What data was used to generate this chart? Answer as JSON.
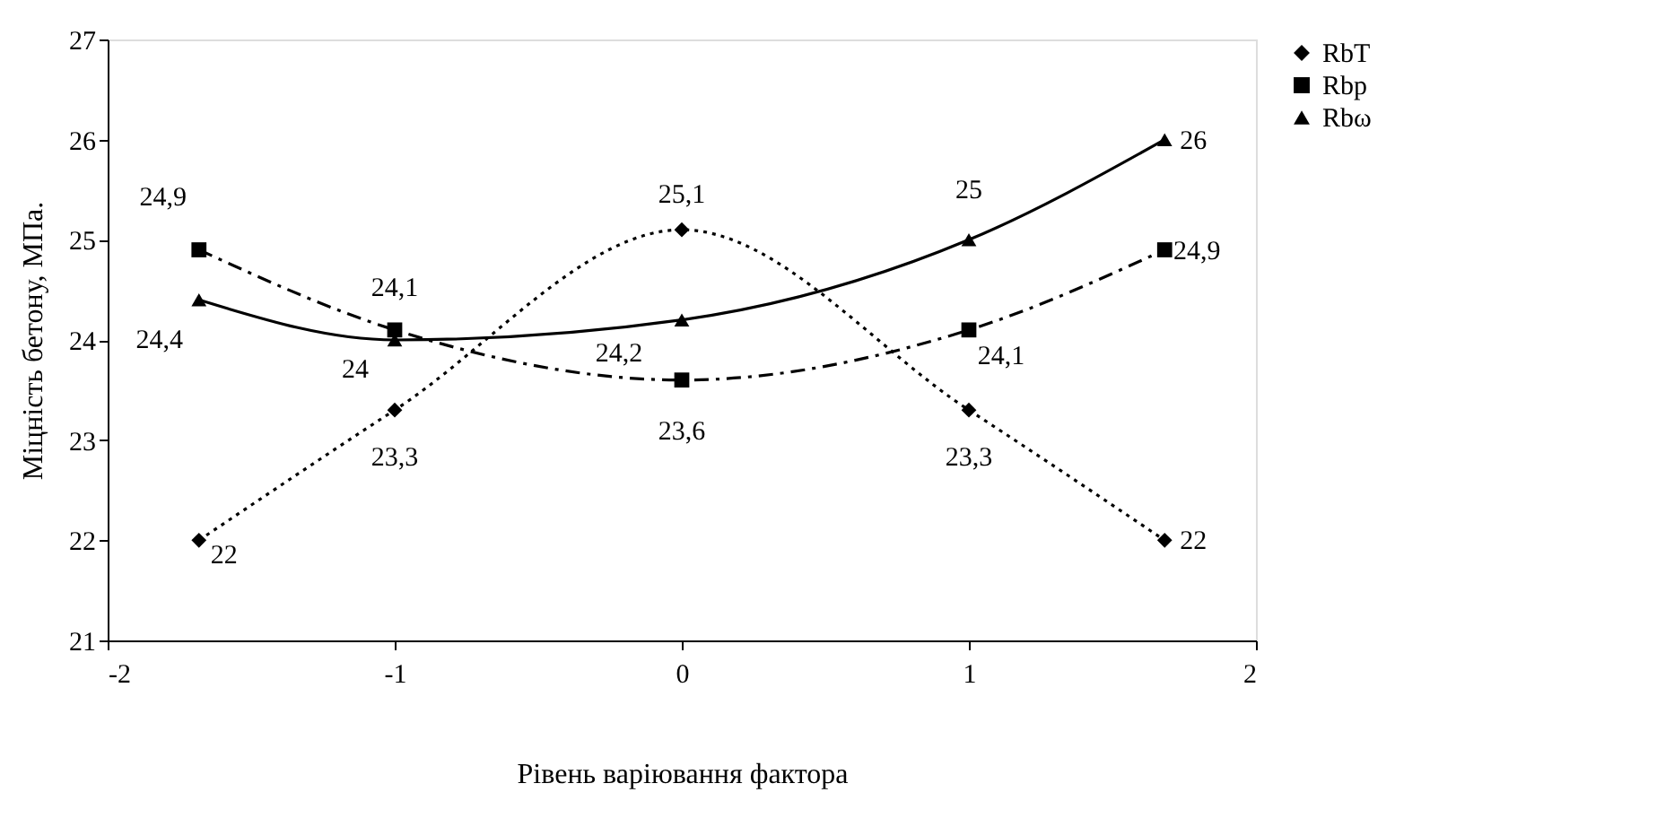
{
  "chart_data": {
    "type": "line",
    "xlabel": "Рівень варіювання фактора",
    "ylabel": "Міцність бетону, МПа.",
    "x": [
      -1.682,
      -1,
      0,
      1,
      1.682
    ],
    "series": [
      {
        "name": "RbT",
        "color": "#000000",
        "values": [
          22,
          23.3,
          25.1,
          23.3,
          22
        ],
        "value_labels": [
          "22",
          "23,3",
          "25,1",
          "23,3",
          "22"
        ],
        "marker": "diamond",
        "line_style": "dotted"
      },
      {
        "name": "Rbp",
        "color": "#000000",
        "values": [
          24.9,
          24.1,
          23.6,
          24.1,
          24.9
        ],
        "value_labels": [
          "24,9",
          "24,1",
          "23,6",
          "24,1",
          "24,9"
        ],
        "marker": "square",
        "line_style": "dashed"
      },
      {
        "name": "Rbω",
        "color": "#000000",
        "values": [
          24.4,
          24,
          24.2,
          25,
          26
        ],
        "value_labels": [
          "24,4",
          "24",
          "24,2",
          "25",
          "26"
        ],
        "marker": "triangle",
        "line_style": "solid"
      }
    ],
    "xlim": [
      -2,
      2
    ],
    "xticks": [
      -2,
      -1,
      0,
      1,
      2
    ],
    "ylim": [
      21,
      27
    ],
    "yticks": [
      21,
      22,
      23,
      24,
      25,
      26,
      27
    ],
    "grid": false,
    "legend": "right"
  }
}
